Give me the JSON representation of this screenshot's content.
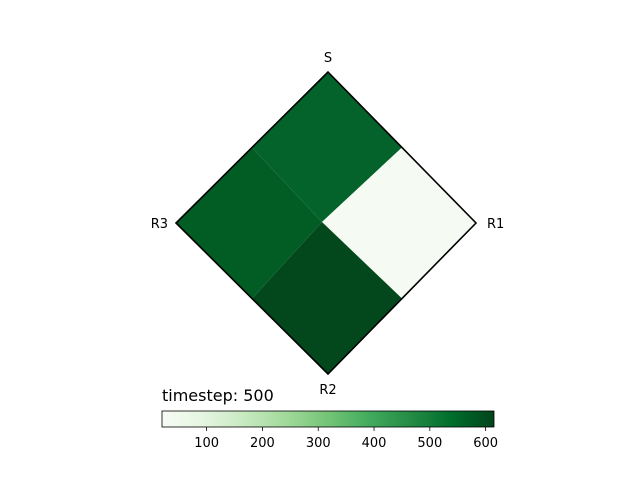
{
  "chart_data": {
    "type": "heatmap",
    "title": "timestep: 500",
    "corner_labels": {
      "top": "S",
      "right": "R1",
      "bottom": "R2",
      "left": "R3"
    },
    "regions": [
      {
        "corner": "S",
        "value": 520,
        "color": "#03632a"
      },
      {
        "corner": "R1",
        "value": 25,
        "color": "#f5fbf3"
      },
      {
        "corner": "R2",
        "value": 600,
        "color": "#02481c"
      },
      {
        "corner": "R3",
        "value": 570,
        "color": "#025d24"
      }
    ],
    "colorbar": {
      "cmap": "Greens",
      "range": [
        20,
        615
      ],
      "ticks": [
        "100",
        "200",
        "300",
        "400",
        "500",
        "600"
      ],
      "tick_values": [
        100,
        200,
        300,
        400,
        500,
        600
      ],
      "stops": [
        "#f7fcf5",
        "#e5f5e0",
        "#c7e9c0",
        "#a1d99b",
        "#74c476",
        "#41ab5d",
        "#238b45",
        "#006d2c",
        "#00441b"
      ]
    }
  }
}
